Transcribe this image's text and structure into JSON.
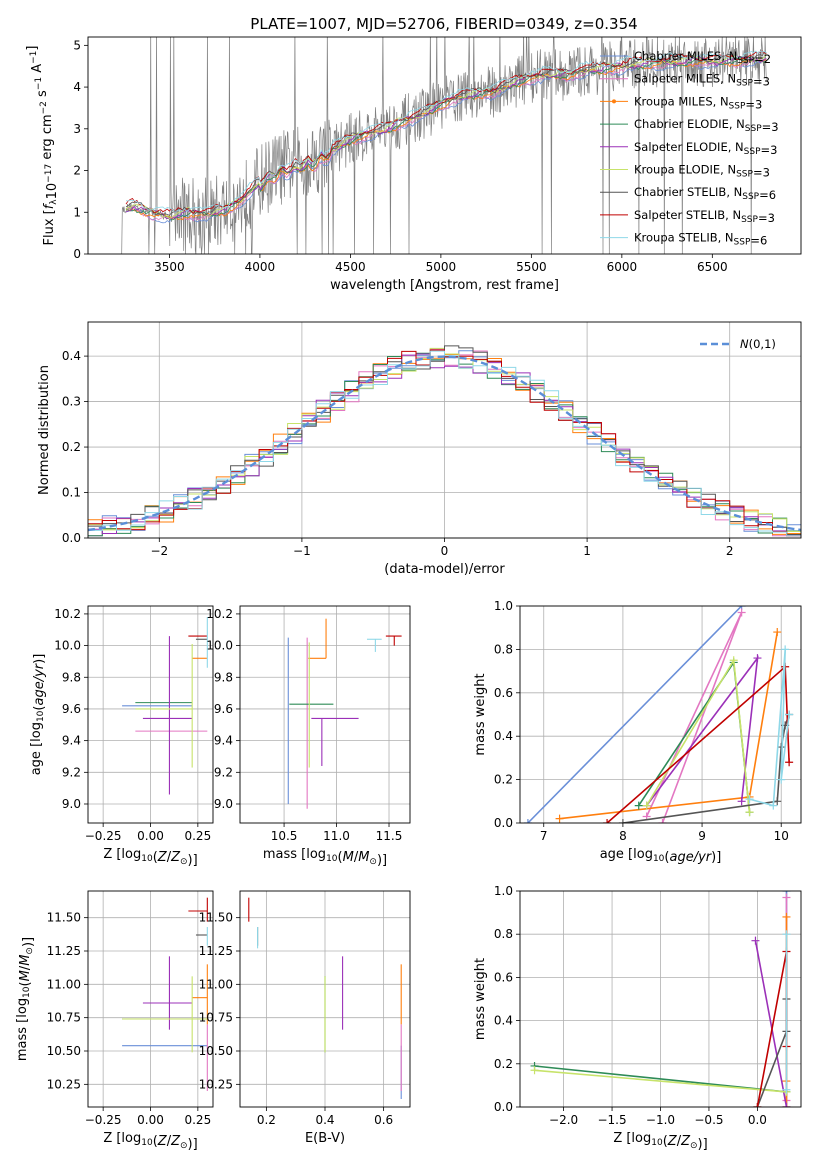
{
  "figure": {
    "title": "PLATE=1007, MJD=52706, FIBERID=0349, z=0.354"
  },
  "colors": {
    "Chabrier MILES": "#6a8fd8",
    "Salpeter MILES": "#e377c2",
    "Kroupa MILES": "#ff7f0e",
    "Chabrier ELODIE": "#2e8b57",
    "Salpeter ELODIE": "#9b30b8",
    "Kroupa ELODIE": "#c7e36a",
    "Chabrier STELIB": "#555555",
    "Salpeter STELIB": "#c00000",
    "Kroupa STELIB": "#8fd8e8",
    "data": "#808080",
    "normal": "#5b8fd8",
    "grid": "#b0b0b0"
  },
  "chart_data": [
    {
      "id": "spectrum",
      "type": "line",
      "xlabel": "wavelength [Angstrom, rest frame]",
      "ylabel": "Flux [f_λ 10^-17 erg cm^-2 s^-1 A^-1]",
      "xlim": [
        3050,
        6990
      ],
      "ylim": [
        0,
        5.2
      ],
      "xticks": [
        3500,
        4000,
        4500,
        5000,
        5500,
        6000,
        6500
      ],
      "yticks": [
        0,
        1,
        2,
        3,
        4,
        5
      ],
      "grid": false,
      "legend_position": "right",
      "legend": [
        "Chabrier MILES, N_SSP=2",
        "Salpeter MILES, N_SSP=3",
        "Kroupa MILES, N_SSP=3",
        "Chabrier ELODIE, N_SSP=3",
        "Salpeter ELODIE, N_SSP=3",
        "Kroupa ELODIE, N_SSP=3",
        "Chabrier STELIB, N_SSP=6",
        "Salpeter STELIB, N_SSP=3",
        "Kroupa STELIB, N_SSP=6"
      ],
      "legend_series": [
        "Chabrier MILES",
        "Salpeter MILES",
        "Kroupa MILES",
        "Chabrier ELODIE",
        "Salpeter ELODIE",
        "Kroupa ELODIE",
        "Chabrier STELIB",
        "Salpeter STELIB",
        "Kroupa STELIB"
      ],
      "model_continuum": {
        "x": [
          3230,
          3300,
          3400,
          3500,
          3600,
          3700,
          3800,
          3900,
          4000,
          4100,
          4200,
          4300,
          4400,
          4500,
          4600,
          4700,
          4800,
          4900,
          5000,
          5100,
          5200,
          5300,
          5400,
          5500,
          5600,
          5700,
          5800,
          5900,
          6000,
          6100,
          6200,
          6300,
          6400,
          6500,
          6600,
          6700,
          6800
        ],
        "y": [
          1.05,
          1.15,
          1.0,
          0.9,
          1.0,
          0.95,
          1.05,
          1.3,
          1.75,
          2.05,
          2.15,
          2.3,
          2.5,
          2.75,
          2.9,
          3.0,
          3.2,
          3.35,
          3.6,
          3.75,
          3.85,
          3.9,
          4.1,
          4.25,
          4.3,
          4.3,
          4.4,
          4.45,
          4.5,
          4.55,
          4.6,
          4.6,
          4.65,
          4.6,
          4.65,
          4.65,
          4.7
        ]
      },
      "data_xrange": [
        3230,
        6800
      ]
    },
    {
      "id": "residuals",
      "type": "line",
      "xlabel": "(data-model)/error",
      "ylabel": "Normed distribution",
      "xlim": [
        -2.5,
        2.5
      ],
      "ylim": [
        0,
        0.475
      ],
      "xticks": [
        -2,
        -1,
        0,
        1,
        2
      ],
      "yticks": [
        0.0,
        0.1,
        0.2,
        0.3,
        0.4
      ],
      "grid": true,
      "legend": [
        "N(0,1)"
      ],
      "legend_position": "top-right",
      "bin_width": 0.1
    },
    {
      "id": "age-vs-Z",
      "type": "scatter",
      "xlabel": "Z [log10(Z/Z☉)]",
      "ylabel": "age  [log10(age/yr)]",
      "xlim": [
        -0.33,
        0.33
      ],
      "ylim": [
        8.88,
        10.25
      ],
      "xticks": [
        -0.25,
        0.0,
        0.25
      ],
      "yticks": [
        9.0,
        9.2,
        9.4,
        9.6,
        9.8,
        10.0,
        10.2
      ],
      "grid": true,
      "points": [
        {
          "series": "Chabrier MILES",
          "x": 0.22,
          "xerr": [
            0.37,
            0.0
          ],
          "y": 9.62,
          "yerr": [
            0.0,
            0.0
          ]
        },
        {
          "series": "Salpeter MILES",
          "x": 0.22,
          "xerr": [
            0.3,
            0.08
          ],
          "y": 9.46,
          "yerr": [
            0.0,
            0.0
          ]
        },
        {
          "series": "Kroupa MILES",
          "x": 0.3,
          "xerr": [
            0.08,
            0.0
          ],
          "y": 9.92,
          "yerr": [
            0.0,
            0.0
          ]
        },
        {
          "series": "Chabrier ELODIE",
          "x": 0.22,
          "xerr": [
            0.3,
            0.0
          ],
          "y": 9.64,
          "yerr": [
            0.0,
            0.0
          ]
        },
        {
          "series": "Salpeter ELODIE",
          "x": 0.1,
          "xerr": [
            0.14,
            0.12
          ],
          "y": 9.54,
          "yerr": [
            0.48,
            0.52
          ]
        },
        {
          "series": "Kroupa ELODIE",
          "x": 0.22,
          "xerr": [
            0.3,
            0.0
          ],
          "y": 9.6,
          "yerr": [
            0.37,
            0.41
          ]
        },
        {
          "series": "Chabrier STELIB",
          "x": 0.3,
          "xerr": [
            0.06,
            0.0
          ],
          "y": 10.04,
          "yerr": [
            0.0,
            0.0
          ]
        },
        {
          "series": "Salpeter STELIB",
          "x": 0.3,
          "xerr": [
            0.1,
            0.0
          ],
          "y": 10.06,
          "yerr": [
            0.0,
            0.0
          ]
        },
        {
          "series": "Kroupa STELIB",
          "x": 0.3,
          "xerr": [
            0.0,
            0.0
          ],
          "y": 10.06,
          "yerr": [
            0.2,
            0.12
          ]
        }
      ]
    },
    {
      "id": "age-vs-mass",
      "type": "scatter",
      "xlabel": "mass [log10(M/M☉)]",
      "ylabel": "",
      "xlim": [
        10.08,
        11.7
      ],
      "ylim": [
        8.88,
        10.25
      ],
      "xticks": [
        10.5,
        11.0,
        11.5
      ],
      "yticks": [
        9.0,
        9.2,
        9.4,
        9.6,
        9.8,
        10.0,
        10.2
      ],
      "grid": true,
      "points": [
        {
          "series": "Chabrier MILES",
          "x": 10.54,
          "xerr": [
            0.0,
            0.0
          ],
          "y": 9.47,
          "yerr": [
            0.47,
            0.58
          ]
        },
        {
          "series": "Salpeter MILES",
          "x": 10.72,
          "xerr": [
            0.0,
            0.0
          ],
          "y": 9.47,
          "yerr": [
            0.5,
            0.58
          ]
        },
        {
          "series": "Kroupa MILES",
          "x": 10.9,
          "xerr": [
            0.17,
            0.0
          ],
          "y": 9.92,
          "yerr": [
            0.0,
            0.25
          ]
        },
        {
          "series": "Chabrier ELODIE",
          "x": 10.75,
          "xerr": [
            0.2,
            0.22
          ],
          "y": 9.63,
          "yerr": [
            0.0,
            0.0
          ]
        },
        {
          "series": "Salpeter ELODIE",
          "x": 10.86,
          "xerr": [
            0.1,
            0.35
          ],
          "y": 9.54,
          "yerr": [
            0.3,
            0.0
          ]
        },
        {
          "series": "Kroupa ELODIE",
          "x": 10.74,
          "xerr": [
            0.0,
            0.0
          ],
          "y": 9.6,
          "yerr": [
            0.37,
            0.42
          ]
        },
        {
          "series": "Chabrier STELIB",
          "x": 11.37,
          "xerr": [
            0.0,
            0.0
          ],
          "y": 10.04,
          "yerr": [
            0.0,
            0.0
          ]
        },
        {
          "series": "Salpeter STELIB",
          "x": 11.55,
          "xerr": [
            0.08,
            0.07
          ],
          "y": 10.06,
          "yerr": [
            0.06,
            0.0
          ]
        },
        {
          "series": "Kroupa STELIB",
          "x": 11.37,
          "xerr": [
            0.08,
            0.06
          ],
          "y": 10.04,
          "yerr": [
            0.08,
            0.0
          ]
        }
      ]
    },
    {
      "id": "mass-weight-vs-age",
      "type": "line",
      "xlabel": "age  [log10(age/yr)]",
      "ylabel": "mass weight",
      "xlim": [
        6.7,
        10.25
      ],
      "ylim": [
        0,
        1
      ],
      "xticks": [
        7,
        8,
        9,
        10
      ],
      "yticks": [
        0.0,
        0.2,
        0.4,
        0.6,
        0.8,
        1.0
      ],
      "grid": true,
      "series": [
        {
          "series": "Chabrier MILES",
          "x": [
            6.8,
            9.5
          ],
          "y": [
            0.0,
            1.0
          ]
        },
        {
          "series": "Salpeter MILES",
          "x": [
            8.3,
            9.5,
            8.5
          ],
          "y": [
            0.03,
            0.97,
            0.0
          ]
        },
        {
          "series": "Kroupa MILES",
          "x": [
            7.2,
            9.6,
            9.95
          ],
          "y": [
            0.02,
            0.12,
            0.88
          ]
        },
        {
          "series": "Chabrier ELODIE",
          "x": [
            8.2,
            9.4,
            9.6
          ],
          "y": [
            0.08,
            0.74,
            0.05
          ]
        },
        {
          "series": "Salpeter ELODIE",
          "x": [
            8.3,
            9.7,
            9.5
          ],
          "y": [
            0.08,
            0.76,
            0.1
          ]
        },
        {
          "series": "Kroupa ELODIE",
          "x": [
            8.3,
            9.4,
            9.6
          ],
          "y": [
            0.08,
            0.75,
            0.05
          ]
        },
        {
          "series": "Chabrier STELIB",
          "x": [
            8.0,
            9.95,
            10.0,
            10.05,
            10.1
          ],
          "y": [
            0.0,
            0.1,
            0.35,
            0.45,
            0.5
          ]
        },
        {
          "series": "Salpeter STELIB",
          "x": [
            7.8,
            10.05,
            10.1
          ],
          "y": [
            0.0,
            0.72,
            0.28
          ]
        },
        {
          "series": "Kroupa STELIB",
          "x": [
            9.6,
            9.9,
            10.05,
            10.0,
            10.1
          ],
          "y": [
            0.11,
            0.08,
            0.8,
            0.2,
            0.5
          ]
        }
      ]
    },
    {
      "id": "mass-vs-Z",
      "type": "scatter",
      "xlabel": "Z [log10(Z/Z☉)]",
      "ylabel": "mass [log10(M/M☉)]",
      "xlim": [
        -0.33,
        0.33
      ],
      "ylim": [
        10.08,
        11.7
      ],
      "xticks": [
        -0.25,
        0.0,
        0.25
      ],
      "yticks": [
        10.25,
        10.5,
        10.75,
        11.0,
        11.25,
        11.5
      ],
      "grid": true,
      "points": [
        {
          "series": "Chabrier MILES",
          "x": 0.22,
          "xerr": [
            0.37,
            0.08
          ],
          "y": 10.54,
          "yerr": [
            0.0,
            0.0
          ]
        },
        {
          "series": "Salpeter MILES",
          "x": 0.3,
          "xerr": [
            0.0,
            0.0
          ],
          "y": 10.7,
          "yerr": [
            0.5,
            0.0
          ]
        },
        {
          "series": "Kroupa MILES",
          "x": 0.3,
          "xerr": [
            0.08,
            0.0
          ],
          "y": 10.9,
          "yerr": [
            0.2,
            0.25
          ]
        },
        {
          "series": "Chabrier ELODIE",
          "x": 0.22,
          "xerr": [
            0.37,
            0.08
          ],
          "y": 10.74,
          "yerr": [
            0.0,
            0.0
          ]
        },
        {
          "series": "Salpeter ELODIE",
          "x": 0.1,
          "xerr": [
            0.14,
            0.12
          ],
          "y": 10.86,
          "yerr": [
            0.2,
            0.35
          ]
        },
        {
          "series": "Kroupa ELODIE",
          "x": 0.22,
          "xerr": [
            0.37,
            0.08
          ],
          "y": 10.74,
          "yerr": [
            0.25,
            0.32
          ]
        },
        {
          "series": "Chabrier STELIB",
          "x": 0.3,
          "xerr": [
            0.06,
            0.0
          ],
          "y": 11.37,
          "yerr": [
            0.0,
            0.0
          ]
        },
        {
          "series": "Salpeter STELIB",
          "x": 0.3,
          "xerr": [
            0.1,
            0.0
          ],
          "y": 11.55,
          "yerr": [
            0.08,
            0.1
          ]
        },
        {
          "series": "Kroupa STELIB",
          "x": 0.3,
          "xerr": [
            0.0,
            0.0
          ],
          "y": 11.37,
          "yerr": [
            0.08,
            0.06
          ]
        }
      ]
    },
    {
      "id": "mass-vs-EBV",
      "type": "scatter",
      "xlabel": "E(B-V)",
      "ylabel": "",
      "xlim": [
        0.11,
        0.69
      ],
      "ylim": [
        10.08,
        11.7
      ],
      "xticks": [
        0.2,
        0.4,
        0.6
      ],
      "yticks": [
        10.25,
        10.5,
        10.75,
        11.0,
        11.25,
        11.5
      ],
      "grid": true,
      "points": [
        {
          "series": "Chabrier MILES",
          "x": 0.66,
          "xerr": [
            0.0,
            0.0
          ],
          "y": 10.54,
          "yerr": [
            0.4,
            0.0
          ]
        },
        {
          "series": "Salpeter MILES",
          "x": 0.66,
          "xerr": [
            0.0,
            0.0
          ],
          "y": 10.7,
          "yerr": [
            0.5,
            0.0
          ]
        },
        {
          "series": "Kroupa MILES",
          "x": 0.66,
          "xerr": [
            0.0,
            0.0
          ],
          "y": 10.9,
          "yerr": [
            0.2,
            0.25
          ]
        },
        {
          "series": "Chabrier ELODIE",
          "x": 0.4,
          "xerr": [
            0.0,
            0.0
          ],
          "y": 10.74,
          "yerr": [
            0.25,
            0.32
          ]
        },
        {
          "series": "Salpeter ELODIE",
          "x": 0.46,
          "xerr": [
            0.0,
            0.0
          ],
          "y": 10.86,
          "yerr": [
            0.2,
            0.35
          ]
        },
        {
          "series": "Kroupa ELODIE",
          "x": 0.4,
          "xerr": [
            0.0,
            0.0
          ],
          "y": 10.74,
          "yerr": [
            0.25,
            0.32
          ]
        },
        {
          "series": "Chabrier STELIB",
          "x": 0.17,
          "xerr": [
            0.0,
            0.0
          ],
          "y": 11.37,
          "yerr": [
            0.08,
            0.06
          ]
        },
        {
          "series": "Salpeter STELIB",
          "x": 0.14,
          "xerr": [
            0.0,
            0.0
          ],
          "y": 11.55,
          "yerr": [
            0.08,
            0.1
          ]
        },
        {
          "series": "Kroupa STELIB",
          "x": 0.17,
          "xerr": [
            0.0,
            0.0
          ],
          "y": 11.37,
          "yerr": [
            0.1,
            0.06
          ]
        }
      ]
    },
    {
      "id": "mass-weight-vs-Z",
      "type": "line",
      "xlabel": "Z [log10(Z/Z☉)]",
      "ylabel": "mass weight",
      "xlim": [
        -2.45,
        0.45
      ],
      "ylim": [
        0,
        1
      ],
      "xticks": [
        -2.0,
        -1.5,
        -1.0,
        -0.5,
        0.0
      ],
      "yticks": [
        0.0,
        0.2,
        0.4,
        0.6,
        0.8,
        1.0
      ],
      "grid": true,
      "series": [
        {
          "series": "Chabrier MILES",
          "x": [
            0.3,
            0.3
          ],
          "y": [
            0.0,
            1.0
          ]
        },
        {
          "series": "Salpeter MILES",
          "x": [
            0.3,
            0.3
          ],
          "y": [
            0.03,
            0.97
          ]
        },
        {
          "series": "Kroupa MILES",
          "x": [
            0.3,
            0.3,
            0.3
          ],
          "y": [
            0.0,
            0.12,
            0.88
          ]
        },
        {
          "series": "Chabrier ELODIE",
          "x": [
            -2.3,
            0.3
          ],
          "y": [
            0.19,
            0.07
          ]
        },
        {
          "series": "Salpeter ELODIE",
          "x": [
            -0.02,
            0.3
          ],
          "y": [
            0.77,
            0.0
          ]
        },
        {
          "series": "Kroupa ELODIE",
          "x": [
            -2.3,
            0.3
          ],
          "y": [
            0.17,
            0.07
          ]
        },
        {
          "series": "Chabrier STELIB",
          "x": [
            0.0,
            0.3,
            0.3
          ],
          "y": [
            0.0,
            0.35,
            0.5
          ]
        },
        {
          "series": "Salpeter STELIB",
          "x": [
            0.0,
            0.3,
            0.3
          ],
          "y": [
            0.0,
            0.72,
            0.28
          ]
        },
        {
          "series": "Kroupa STELIB",
          "x": [
            0.3,
            0.3
          ],
          "y": [
            0.08,
            0.8
          ]
        }
      ]
    }
  ]
}
